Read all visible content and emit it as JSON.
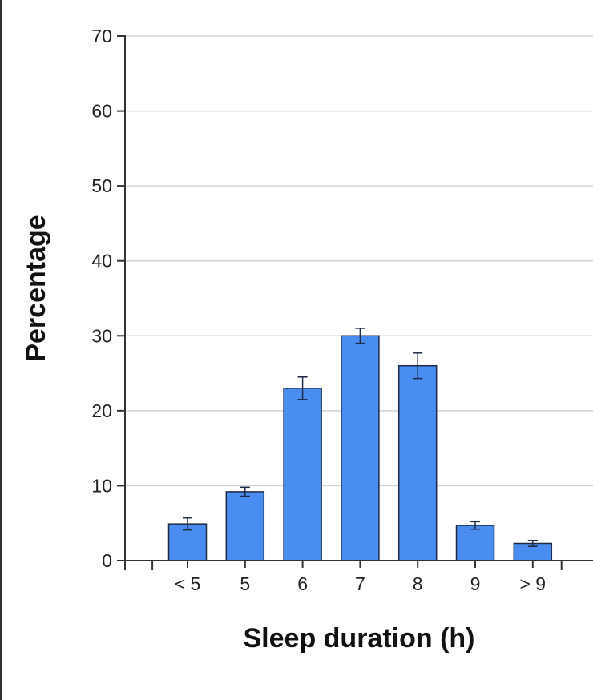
{
  "chart_data": {
    "type": "bar",
    "title": "",
    "xlabel": "Sleep duration (h)",
    "ylabel": "Percentage",
    "categories": [
      "< 5",
      "5",
      "6",
      "7",
      "8",
      "9",
      "> 9"
    ],
    "values": [
      4.9,
      9.2,
      23.0,
      30.0,
      26.0,
      4.7,
      2.3
    ],
    "error": [
      0.8,
      0.6,
      1.5,
      1.0,
      1.7,
      0.5,
      0.4
    ],
    "ylim": [
      0,
      70
    ],
    "yticks": [
      0,
      10,
      20,
      30,
      40,
      50,
      60,
      70
    ],
    "grid": true,
    "colors": {
      "bar": "#4a8df0",
      "bar_stroke": "#1f2a44",
      "grid": "#d4d4d4",
      "axis": "#333333"
    }
  }
}
